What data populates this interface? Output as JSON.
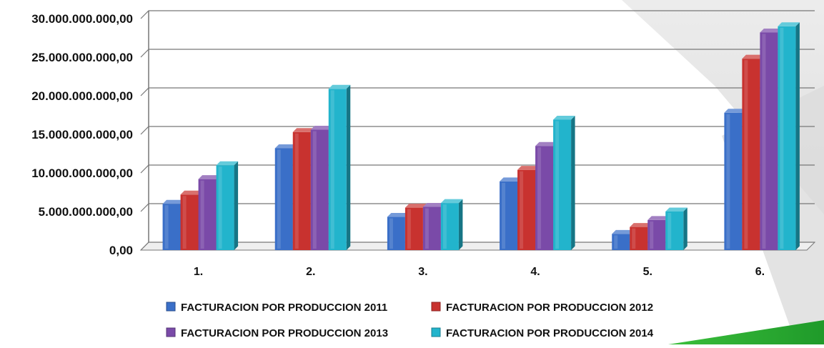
{
  "chart_data": {
    "type": "bar",
    "categories": [
      "1.",
      "2.",
      "3.",
      "4.",
      "5.",
      "6."
    ],
    "ylim": [
      0,
      30000000000
    ],
    "y_ticks": [
      0,
      5000000000,
      10000000000,
      15000000000,
      20000000000,
      25000000000,
      30000000000
    ],
    "y_tick_labels": [
      "0,00",
      "5.000.000.000,00",
      "10.000.000.000,00",
      "15.000.000.000,00",
      "20.000.000.000,00",
      "25.000.000.000,00",
      "30.000.000.000,00"
    ],
    "grid": true,
    "legend_position": "bottom",
    "series": [
      {
        "name": "FACTURACION POR PRODUCCION 2011",
        "color": "#3a6fc8",
        "values": [
          6000000000,
          13200000000,
          4300000000,
          8900000000,
          2100000000,
          17800000000
        ]
      },
      {
        "name": "FACTURACION POR PRODUCCION 2012",
        "color": "#c8322f",
        "values": [
          7200000000,
          15300000000,
          5500000000,
          10400000000,
          3000000000,
          24800000000
        ]
      },
      {
        "name": "FACTURACION POR PRODUCCION 2013",
        "color": "#7a4aa8",
        "values": [
          9200000000,
          15600000000,
          5600000000,
          13500000000,
          3900000000,
          28200000000
        ]
      },
      {
        "name": "FACTURACION POR PRODUCCION 2014",
        "color": "#22b4cc",
        "values": [
          11000000000,
          20900000000,
          6100000000,
          16900000000,
          5000000000,
          29000000000
        ]
      }
    ]
  }
}
